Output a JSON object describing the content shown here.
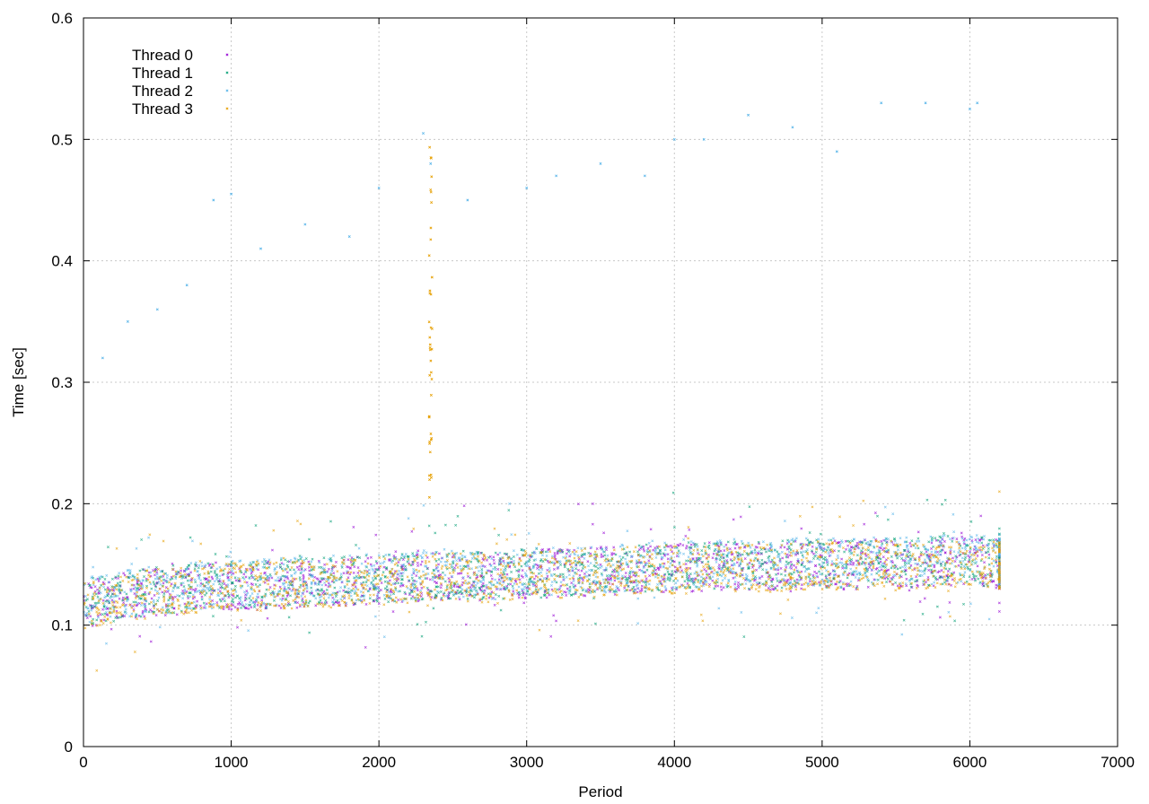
{
  "chart_data": {
    "type": "scatter",
    "title": "",
    "xlabel": "Period",
    "ylabel": "Time [sec]",
    "xlim": [
      0,
      7000
    ],
    "ylim": [
      0,
      0.6
    ],
    "xticks": [
      0,
      1000,
      2000,
      3000,
      4000,
      5000,
      6000,
      7000
    ],
    "yticks": [
      0,
      0.1,
      0.2,
      0.3,
      0.4,
      0.5,
      0.6
    ],
    "xtick_labels": [
      "0",
      "1000",
      "2000",
      "3000",
      "4000",
      "5000",
      "6000",
      "7000"
    ],
    "ytick_labels": [
      "0",
      "0.1",
      "0.2",
      "0.3",
      "0.4",
      "0.5",
      "0.6"
    ],
    "grid": true,
    "legend_position": "top-left",
    "marker": "tiny cross",
    "series": [
      {
        "name": "Thread 0",
        "color": "#9400d3",
        "points": [
          [
            0,
            0.118
          ],
          [
            200,
            0.122
          ],
          [
            400,
            0.126
          ],
          [
            600,
            0.128
          ],
          [
            800,
            0.131
          ],
          [
            1000,
            0.133
          ],
          [
            1200,
            0.132
          ],
          [
            1400,
            0.134
          ],
          [
            1600,
            0.135
          ],
          [
            1800,
            0.136
          ],
          [
            2000,
            0.137
          ],
          [
            2200,
            0.138
          ],
          [
            2400,
            0.141
          ],
          [
            2600,
            0.14
          ],
          [
            2800,
            0.139
          ],
          [
            3000,
            0.142
          ],
          [
            3200,
            0.143
          ],
          [
            3400,
            0.144
          ],
          [
            3600,
            0.145
          ],
          [
            3800,
            0.146
          ],
          [
            4000,
            0.147
          ],
          [
            4200,
            0.148
          ],
          [
            4400,
            0.149
          ],
          [
            4600,
            0.147
          ],
          [
            4800,
            0.15
          ],
          [
            5000,
            0.15
          ],
          [
            5200,
            0.149
          ],
          [
            5400,
            0.151
          ],
          [
            5600,
            0.15
          ],
          [
            5800,
            0.152
          ],
          [
            6000,
            0.153
          ],
          [
            6200,
            0.15
          ]
        ]
      },
      {
        "name": "Thread 1",
        "color": "#009e73",
        "points": [
          [
            0,
            0.119
          ],
          [
            200,
            0.123
          ],
          [
            400,
            0.127
          ],
          [
            600,
            0.129
          ],
          [
            800,
            0.132
          ],
          [
            1000,
            0.134
          ],
          [
            1200,
            0.133
          ],
          [
            1400,
            0.135
          ],
          [
            1600,
            0.136
          ],
          [
            1800,
            0.137
          ],
          [
            2000,
            0.138
          ],
          [
            2200,
            0.139
          ],
          [
            2400,
            0.142
          ],
          [
            2600,
            0.141
          ],
          [
            2800,
            0.14
          ],
          [
            3000,
            0.143
          ],
          [
            3200,
            0.144
          ],
          [
            3400,
            0.145
          ],
          [
            3600,
            0.146
          ],
          [
            3800,
            0.147
          ],
          [
            4000,
            0.148
          ],
          [
            4200,
            0.149
          ],
          [
            4400,
            0.15
          ],
          [
            4600,
            0.148
          ],
          [
            4800,
            0.151
          ],
          [
            5000,
            0.151
          ],
          [
            5200,
            0.15
          ],
          [
            5400,
            0.152
          ],
          [
            5600,
            0.151
          ],
          [
            5800,
            0.153
          ],
          [
            6000,
            0.154
          ],
          [
            6200,
            0.151
          ]
        ]
      },
      {
        "name": "Thread 2",
        "color": "#56b4e9",
        "points": [
          [
            0,
            0.12
          ],
          [
            200,
            0.124
          ],
          [
            400,
            0.128
          ],
          [
            600,
            0.13
          ],
          [
            800,
            0.133
          ],
          [
            1000,
            0.135
          ],
          [
            1200,
            0.134
          ],
          [
            1400,
            0.136
          ],
          [
            1600,
            0.137
          ],
          [
            1800,
            0.138
          ],
          [
            2000,
            0.139
          ],
          [
            2200,
            0.14
          ],
          [
            2400,
            0.143
          ],
          [
            2600,
            0.142
          ],
          [
            2800,
            0.141
          ],
          [
            3000,
            0.144
          ],
          [
            3200,
            0.145
          ],
          [
            3400,
            0.146
          ],
          [
            3600,
            0.147
          ],
          [
            3800,
            0.148
          ],
          [
            4000,
            0.149
          ],
          [
            4200,
            0.15
          ],
          [
            4400,
            0.151
          ],
          [
            4600,
            0.149
          ],
          [
            4800,
            0.152
          ],
          [
            5000,
            0.152
          ],
          [
            5200,
            0.151
          ],
          [
            5400,
            0.153
          ],
          [
            5600,
            0.152
          ],
          [
            5800,
            0.154
          ],
          [
            6000,
            0.155
          ],
          [
            6200,
            0.152
          ]
        ]
      },
      {
        "name": "Thread 3",
        "color": "#e69f00",
        "points": [
          [
            0,
            0.117
          ],
          [
            200,
            0.121
          ],
          [
            400,
            0.125
          ],
          [
            600,
            0.127
          ],
          [
            800,
            0.13
          ],
          [
            1000,
            0.132
          ],
          [
            1200,
            0.131
          ],
          [
            1400,
            0.133
          ],
          [
            1600,
            0.134
          ],
          [
            1800,
            0.135
          ],
          [
            2000,
            0.136
          ],
          [
            2200,
            0.137
          ],
          [
            2400,
            0.14
          ],
          [
            2600,
            0.139
          ],
          [
            2800,
            0.138
          ],
          [
            3000,
            0.141
          ],
          [
            3200,
            0.142
          ],
          [
            3400,
            0.143
          ],
          [
            3600,
            0.144
          ],
          [
            3800,
            0.145
          ],
          [
            4000,
            0.146
          ],
          [
            4200,
            0.147
          ],
          [
            4400,
            0.148
          ],
          [
            4600,
            0.146
          ],
          [
            4800,
            0.149
          ],
          [
            5000,
            0.149
          ],
          [
            5200,
            0.148
          ],
          [
            5400,
            0.15
          ],
          [
            5600,
            0.149
          ],
          [
            5800,
            0.151
          ],
          [
            6000,
            0.152
          ],
          [
            6200,
            0.149
          ]
        ]
      }
    ],
    "outliers": [
      [
        130,
        0.32
      ],
      [
        300,
        0.35
      ],
      [
        500,
        0.36
      ],
      [
        700,
        0.38
      ],
      [
        880,
        0.45
      ],
      [
        1000,
        0.455
      ],
      [
        1200,
        0.41
      ],
      [
        1500,
        0.43
      ],
      [
        1800,
        0.42
      ],
      [
        2000,
        0.46
      ],
      [
        2300,
        0.505
      ],
      [
        2350,
        0.48
      ],
      [
        2600,
        0.45
      ],
      [
        3000,
        0.46
      ],
      [
        3200,
        0.47
      ],
      [
        3500,
        0.48
      ],
      [
        3800,
        0.47
      ],
      [
        4000,
        0.5
      ],
      [
        4200,
        0.5
      ],
      [
        4500,
        0.52
      ],
      [
        4800,
        0.51
      ],
      [
        5100,
        0.49
      ],
      [
        5400,
        0.53
      ],
      [
        5700,
        0.53
      ],
      [
        6000,
        0.525
      ],
      [
        6050,
        0.53
      ]
    ],
    "spike": {
      "x": 2350,
      "y_range": [
        0.2,
        0.5
      ]
    }
  }
}
